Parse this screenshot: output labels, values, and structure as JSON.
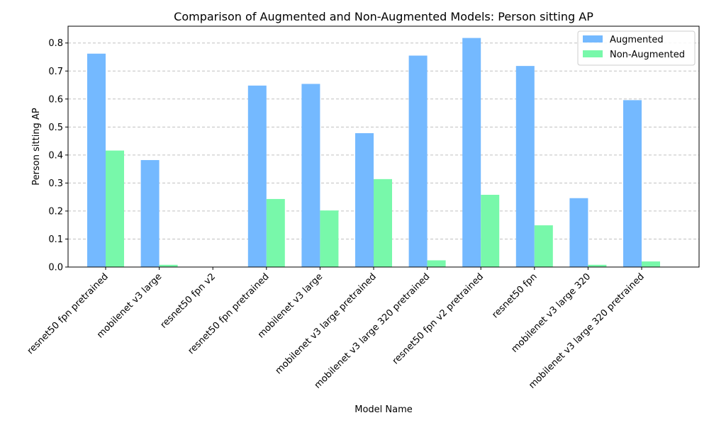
{
  "chart_data": {
    "type": "bar",
    "title": "Comparison of Augmented and Non-Augmented Models: Person sitting AP",
    "xlabel": "Model Name",
    "ylabel": "Person sitting AP",
    "ylim": [
      0,
      0.86
    ],
    "yticks": [
      "0.0",
      "0.1",
      "0.2",
      "0.3",
      "0.4",
      "0.5",
      "0.6",
      "0.7",
      "0.8"
    ],
    "grid": "y-dashed",
    "legend_position": "top-right",
    "categories": [
      "resnet50 fpn pretrained",
      "mobilenet v3 large",
      "resnet50 fpn v2",
      "resnet50 fpn pretrained",
      "mobilenet v3 large",
      "mobilenet v3 large pretrained",
      "mobilenet v3 large 320 pretrained",
      "resnet50 fpn v2 pretrained",
      "resnet50 fpn",
      "mobilenet v3 large 320",
      "mobilenet v3 large 320 pretrained"
    ],
    "series": [
      {
        "name": "Augmented",
        "color": "#74b9ff",
        "values": [
          0.762,
          0.382,
          0.0,
          0.648,
          0.654,
          0.478,
          0.755,
          0.818,
          0.718,
          0.246,
          0.596
        ]
      },
      {
        "name": "Non-Augmented",
        "color": "#78f8aa",
        "values": [
          0.416,
          0.008,
          0.0,
          0.243,
          0.202,
          0.314,
          0.024,
          0.258,
          0.149,
          0.008,
          0.02
        ]
      }
    ]
  }
}
